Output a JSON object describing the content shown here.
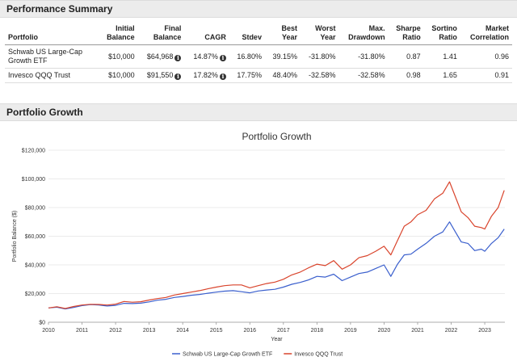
{
  "performance": {
    "header": "Performance Summary",
    "columns": [
      {
        "key": "portfolio",
        "label": "Portfolio"
      },
      {
        "key": "initial",
        "label": "Initial\nBalance"
      },
      {
        "key": "final",
        "label": "Final\nBalance"
      },
      {
        "key": "cagr",
        "label": "CAGR"
      },
      {
        "key": "stdev",
        "label": "Stdev"
      },
      {
        "key": "best",
        "label": "Best\nYear"
      },
      {
        "key": "worst",
        "label": "Worst\nYear"
      },
      {
        "key": "drawdown",
        "label": "Max.\nDrawdown"
      },
      {
        "key": "sharpe",
        "label": "Sharpe\nRatio"
      },
      {
        "key": "sortino",
        "label": "Sortino\nRatio"
      },
      {
        "key": "correlation",
        "label": "Market\nCorrelation"
      }
    ],
    "rows": [
      {
        "portfolio": "Schwab US Large-Cap Growth ETF",
        "initial": "$10,000",
        "final": "$64,968",
        "cagr": "14.87%",
        "stdev": "16.80%",
        "best": "39.15%",
        "worst": "-31.80%",
        "drawdown": "-31.80%",
        "sharpe": "0.87",
        "sortino": "1.41",
        "correlation": "0.96"
      },
      {
        "portfolio": "Invesco QQQ Trust",
        "initial": "$10,000",
        "final": "$91,550",
        "cagr": "17.82%",
        "stdev": "17.75%",
        "best": "48.40%",
        "worst": "-32.58%",
        "drawdown": "-32.58%",
        "sharpe": "0.98",
        "sortino": "1.65",
        "correlation": "0.91"
      }
    ],
    "info_icon": "i"
  },
  "growth": {
    "header": "Portfolio Growth"
  },
  "chart_data": {
    "type": "line",
    "title": "Portfolio Growth",
    "xlabel": "Year",
    "ylabel": "Portfolio Balance ($)",
    "xlim": [
      2010,
      2023.6
    ],
    "ylim": [
      0,
      120000
    ],
    "x_ticks": [
      "2010",
      "2011",
      "2012",
      "2013",
      "2014",
      "2015",
      "2016",
      "2017",
      "2018",
      "2019",
      "2020",
      "2021",
      "2022",
      "2023"
    ],
    "y_ticks": [
      "$0",
      "$20,000",
      "$40,000",
      "$60,000",
      "$80,000",
      "$100,000",
      "$120,000"
    ],
    "grid": true,
    "legend": "bottom-center",
    "series": [
      {
        "name": "Schwab US Large-Cap Growth ETF",
        "color": "#3a5fcd",
        "points": [
          [
            2010.0,
            10000
          ],
          [
            2010.25,
            10500
          ],
          [
            2010.5,
            9300
          ],
          [
            2010.75,
            10300
          ],
          [
            2011.0,
            11600
          ],
          [
            2011.25,
            12300
          ],
          [
            2011.5,
            12000
          ],
          [
            2011.75,
            11300
          ],
          [
            2012.0,
            11800
          ],
          [
            2012.25,
            13200
          ],
          [
            2012.5,
            13000
          ],
          [
            2012.75,
            13300
          ],
          [
            2013.0,
            14200
          ],
          [
            2013.25,
            15400
          ],
          [
            2013.5,
            16000
          ],
          [
            2013.75,
            17300
          ],
          [
            2014.0,
            18000
          ],
          [
            2014.25,
            18800
          ],
          [
            2014.5,
            19400
          ],
          [
            2014.75,
            20200
          ],
          [
            2015.0,
            21000
          ],
          [
            2015.25,
            21700
          ],
          [
            2015.5,
            22000
          ],
          [
            2015.75,
            21300
          ],
          [
            2016.0,
            20500
          ],
          [
            2016.25,
            21800
          ],
          [
            2016.5,
            22500
          ],
          [
            2016.75,
            23000
          ],
          [
            2017.0,
            24500
          ],
          [
            2017.25,
            26500
          ],
          [
            2017.5,
            27800
          ],
          [
            2017.75,
            29500
          ],
          [
            2018.0,
            32000
          ],
          [
            2018.25,
            31500
          ],
          [
            2018.5,
            33500
          ],
          [
            2018.75,
            29000
          ],
          [
            2019.0,
            31500
          ],
          [
            2019.25,
            34000
          ],
          [
            2019.5,
            35000
          ],
          [
            2019.75,
            37500
          ],
          [
            2020.0,
            40000
          ],
          [
            2020.2,
            32000
          ],
          [
            2020.4,
            40500
          ],
          [
            2020.6,
            47000
          ],
          [
            2020.8,
            47500
          ],
          [
            2021.0,
            51000
          ],
          [
            2021.25,
            55000
          ],
          [
            2021.5,
            60000
          ],
          [
            2021.75,
            63000
          ],
          [
            2021.95,
            70000
          ],
          [
            2022.1,
            64000
          ],
          [
            2022.3,
            56000
          ],
          [
            2022.5,
            55000
          ],
          [
            2022.7,
            50000
          ],
          [
            2022.9,
            51000
          ],
          [
            2023.0,
            49500
          ],
          [
            2023.2,
            55000
          ],
          [
            2023.4,
            59000
          ],
          [
            2023.58,
            65000
          ]
        ]
      },
      {
        "name": "Invesco QQQ Trust",
        "color": "#d9442c",
        "points": [
          [
            2010.0,
            10000
          ],
          [
            2010.25,
            10800
          ],
          [
            2010.5,
            9600
          ],
          [
            2010.75,
            11000
          ],
          [
            2011.0,
            12000
          ],
          [
            2011.25,
            12500
          ],
          [
            2011.5,
            12400
          ],
          [
            2011.75,
            12000
          ],
          [
            2012.0,
            12600
          ],
          [
            2012.25,
            14500
          ],
          [
            2012.5,
            14000
          ],
          [
            2012.75,
            14300
          ],
          [
            2013.0,
            15500
          ],
          [
            2013.25,
            16500
          ],
          [
            2013.5,
            17300
          ],
          [
            2013.75,
            19000
          ],
          [
            2014.0,
            20000
          ],
          [
            2014.25,
            21000
          ],
          [
            2014.5,
            22000
          ],
          [
            2014.75,
            23300
          ],
          [
            2015.0,
            24500
          ],
          [
            2015.25,
            25500
          ],
          [
            2015.5,
            26000
          ],
          [
            2015.75,
            26000
          ],
          [
            2016.0,
            24000
          ],
          [
            2016.25,
            25500
          ],
          [
            2016.5,
            27000
          ],
          [
            2016.75,
            28000
          ],
          [
            2017.0,
            30000
          ],
          [
            2017.25,
            33000
          ],
          [
            2017.5,
            35000
          ],
          [
            2017.75,
            38000
          ],
          [
            2018.0,
            40500
          ],
          [
            2018.25,
            39500
          ],
          [
            2018.5,
            43000
          ],
          [
            2018.75,
            37000
          ],
          [
            2019.0,
            40000
          ],
          [
            2019.25,
            45000
          ],
          [
            2019.5,
            46500
          ],
          [
            2019.75,
            49500
          ],
          [
            2020.0,
            53000
          ],
          [
            2020.2,
            47000
          ],
          [
            2020.4,
            57000
          ],
          [
            2020.6,
            67000
          ],
          [
            2020.8,
            70000
          ],
          [
            2021.0,
            75000
          ],
          [
            2021.25,
            78000
          ],
          [
            2021.5,
            86000
          ],
          [
            2021.75,
            90000
          ],
          [
            2021.95,
            98000
          ],
          [
            2022.1,
            89000
          ],
          [
            2022.3,
            77000
          ],
          [
            2022.5,
            73000
          ],
          [
            2022.7,
            67000
          ],
          [
            2022.9,
            66000
          ],
          [
            2023.0,
            65000
          ],
          [
            2023.2,
            74000
          ],
          [
            2023.4,
            80000
          ],
          [
            2023.58,
            92000
          ]
        ]
      }
    ]
  }
}
